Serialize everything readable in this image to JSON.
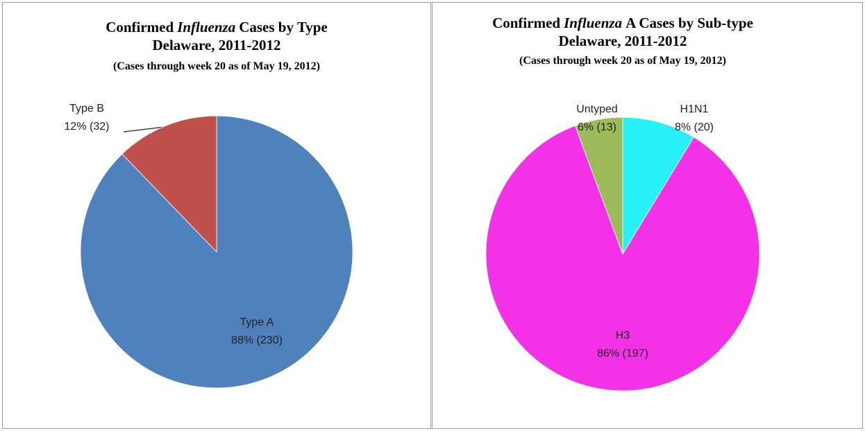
{
  "chart_data": [
    {
      "type": "pie",
      "title": [
        "Confirmed",
        "Influenza",
        "Cases by Type"
      ],
      "subtitle": [
        "Delaware, 2011-2012",
        "(Cases through week 20 as of May 19, 2012)"
      ],
      "categories": [
        "Type A",
        "Type B"
      ],
      "values": [
        230,
        32
      ],
      "value_labels": [
        "88% (230)",
        "12% (32)"
      ],
      "colors": [
        "#4f81bd",
        "#c0504d"
      ]
    },
    {
      "type": "pie",
      "title": [
        "Confirmed",
        "Influenza",
        "A Cases by Sub-type"
      ],
      "subtitle": [
        "Delaware, 2011-2012",
        "(Cases through week 20 as of May 19, 2012)"
      ],
      "categories": [
        "H1N1",
        "H3",
        "Untyped"
      ],
      "values": [
        20,
        197,
        13
      ],
      "value_labels": [
        "8% (20)",
        "86% (197)",
        "6% (13)"
      ],
      "colors": [
        "#27f0f7",
        "#f331e6",
        "#9bbb59"
      ]
    }
  ]
}
